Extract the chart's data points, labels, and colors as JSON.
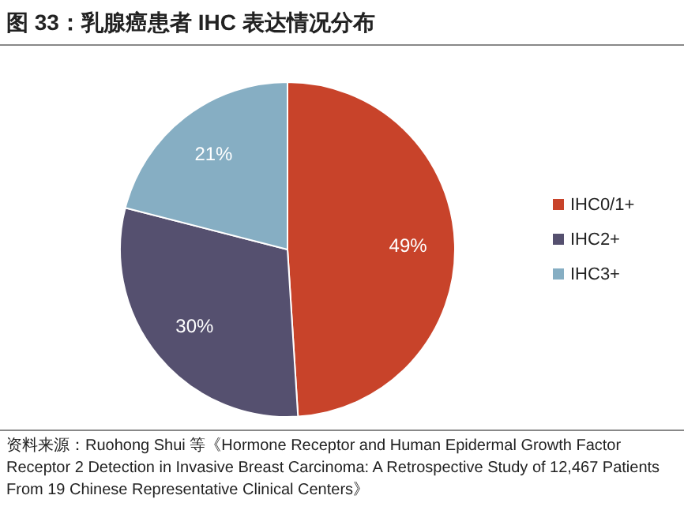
{
  "chart_data": {
    "type": "pie",
    "title": "图 33：乳腺癌患者 IHC 表达情况分布",
    "categories": [
      "IHC0/1+",
      "IHC2+",
      "IHC3+"
    ],
    "values": [
      49,
      30,
      21
    ],
    "value_labels": [
      "49%",
      "30%",
      "21%"
    ],
    "colors": [
      "#c8432a",
      "#55506f",
      "#86aec3"
    ],
    "legend": "right",
    "annotations": [
      "资料来源：Ruohong Shui 等《Hormone Receptor and Human Epidermal Growth Factor Receptor 2 Detection in Invasive Breast Carcinoma: A Retrospective Study of 12,467 Patients From 19 Chinese Representative Clinical Centers》"
    ]
  }
}
